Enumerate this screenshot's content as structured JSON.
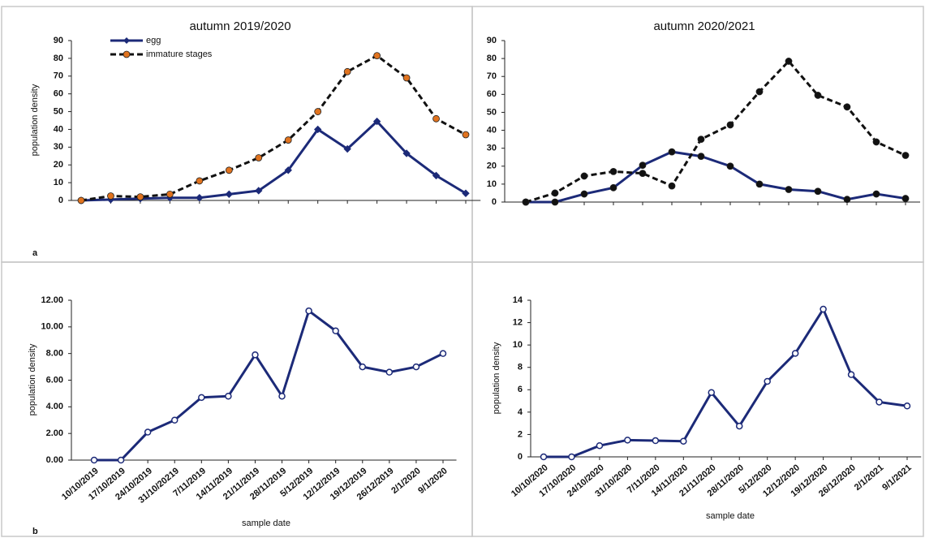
{
  "chart_data": [
    {
      "type": "line",
      "title": "autumn 2019/2020",
      "ylabel": "population density",
      "panel_label": "a",
      "categories": [
        null,
        null,
        null,
        null,
        null,
        null,
        null,
        null,
        null,
        null,
        null,
        null,
        null,
        null
      ],
      "ylim": [
        0,
        90
      ],
      "yticks": [
        0,
        10,
        20,
        30,
        40,
        50,
        60,
        70,
        80,
        90
      ],
      "legend": "upper left",
      "series": [
        {
          "name": "egg",
          "color": "#1c2a78",
          "dashed": false,
          "marker": "diamond",
          "marker_color": "#1c2a78",
          "values": [
            0,
            0.5,
            1,
            1.5,
            1.5,
            3.5,
            5.5,
            17,
            40,
            29,
            44.5,
            26.5,
            14,
            4
          ]
        },
        {
          "name": "immature stages",
          "color": "#111111",
          "dashed": true,
          "marker": "circle",
          "marker_color": "#e0731f",
          "values": [
            0,
            2.5,
            2,
            3.5,
            11,
            17,
            24,
            34,
            50,
            72.5,
            81.5,
            69,
            46,
            37
          ]
        }
      ]
    },
    {
      "type": "line",
      "title": "autumn 2020/2021",
      "categories": [
        null,
        null,
        null,
        null,
        null,
        null,
        null,
        null,
        null,
        null,
        null,
        null,
        null,
        null
      ],
      "ylim": [
        0,
        90
      ],
      "yticks": [
        0,
        10,
        20,
        30,
        40,
        50,
        60,
        70,
        80,
        90
      ],
      "series": [
        {
          "color": "#1c2a78",
          "dashed": false,
          "marker": "circle",
          "marker_color": "#111111",
          "values": [
            0,
            0,
            4.5,
            8,
            20.5,
            28,
            25.5,
            20,
            10,
            7,
            6,
            1.5,
            4.5,
            2
          ]
        },
        {
          "color": "#111111",
          "dashed": true,
          "marker": "circle",
          "marker_color": "#111111",
          "values": [
            0,
            5,
            14.5,
            17,
            16,
            9,
            35,
            43,
            61.5,
            78.5,
            59.5,
            53,
            33.5,
            26
          ]
        }
      ]
    },
    {
      "type": "line",
      "ylabel": "population density",
      "xlabel": "sample date",
      "panel_label": "b",
      "categories": [
        "10/10/2019",
        "17/10/2019",
        "24/10/2019",
        "31/10/20219",
        "7/11/2019",
        "14/11/2019",
        "21/11/2019",
        "28/11/2019",
        "5/12/2019",
        "12/12/2019",
        "19/12/2019",
        "26/12/2019",
        "2/1/2020",
        "9/1/2020"
      ],
      "ylim": [
        0,
        12
      ],
      "yticks": [
        {
          "value": 0,
          "label": "0.00"
        },
        {
          "value": 2,
          "label": "2.00"
        },
        {
          "value": 4,
          "label": "4.00"
        },
        {
          "value": 6,
          "label": "6.00"
        },
        {
          "value": 8,
          "label": "8.00"
        },
        {
          "value": 10,
          "label": "10.00"
        },
        {
          "value": 12,
          "label": "12.00"
        }
      ],
      "series": [
        {
          "color": "#1c2a78",
          "dashed": false,
          "marker": "ring",
          "marker_color": "#1c2a78",
          "values": [
            0,
            0,
            2.1,
            3,
            4.7,
            4.8,
            7.9,
            4.8,
            11.2,
            9.7,
            7,
            6.6,
            7,
            8
          ]
        }
      ]
    },
    {
      "type": "line",
      "ylabel": "population density",
      "xlabel": "sample date",
      "categories": [
        "10/10/2020",
        "17/10/2020",
        "24/10/2020",
        "31/10/2020",
        "7/11/2020",
        "14/11/2020",
        "21/11/2020",
        "28/11/2020",
        "5/12/2020",
        "12/12/2020",
        "19/12/2020",
        "26/12/2020",
        "2/1/2021",
        "9/1/2021"
      ],
      "ylim": [
        0,
        14
      ],
      "yticks": [
        0,
        2,
        4,
        6,
        8,
        10,
        12,
        14
      ],
      "series": [
        {
          "color": "#1c2a78",
          "dashed": false,
          "marker": "ring",
          "marker_color": "#1c2a78",
          "values": [
            0,
            0,
            1,
            1.5,
            1.45,
            1.4,
            5.75,
            2.75,
            6.75,
            9.25,
            13.2,
            7.35,
            4.9,
            4.55
          ]
        }
      ]
    }
  ]
}
